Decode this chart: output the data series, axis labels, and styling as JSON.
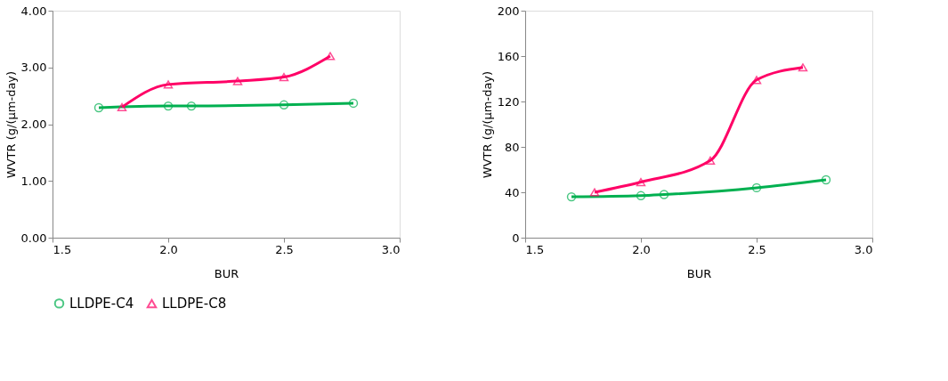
{
  "chart_data": [
    {
      "type": "line",
      "xlabel": "BUR",
      "ylabel": "WVTR (g/(µm-day)",
      "xlim": [
        1.5,
        3.0
      ],
      "xticks": [
        {
          "value": 1.5,
          "label": "1.5"
        },
        {
          "value": 2.0,
          "label": "2.0"
        },
        {
          "value": 2.5,
          "label": "2.5"
        },
        {
          "value": 3.0,
          "label": "3.0"
        }
      ],
      "ylim": [
        0,
        4
      ],
      "yticks": [
        {
          "value": 0,
          "label": "0.00"
        },
        {
          "value": 1,
          "label": "1.00"
        },
        {
          "value": 2,
          "label": "2.00"
        },
        {
          "value": 3,
          "label": "3.00"
        },
        {
          "value": 4,
          "label": "4.00"
        }
      ],
      "grid": false,
      "legend": "bottom",
      "series": [
        {
          "name": "LLDPE-C4",
          "color": "#00b050",
          "marker": "circle",
          "x": [
            1.7,
            2.0,
            2.1,
            2.5,
            2.8
          ],
          "values": [
            2.29,
            2.32,
            2.32,
            2.34,
            2.37
          ]
        },
        {
          "name": "LLDPE-C8",
          "color": "#ff0066",
          "marker": "triangle",
          "x": [
            1.8,
            2.0,
            2.3,
            2.5,
            2.7
          ],
          "values": [
            2.3,
            2.7,
            2.76,
            2.83,
            3.2
          ]
        }
      ]
    },
    {
      "type": "line",
      "xlabel": "BUR",
      "ylabel": "WVTR (g/(µm-day)",
      "xlim": [
        1.5,
        3.0
      ],
      "xticks": [
        {
          "value": 1.5,
          "label": "1.5"
        },
        {
          "value": 2.0,
          "label": "2.0"
        },
        {
          "value": 2.5,
          "label": "2.5"
        },
        {
          "value": 3.0,
          "label": "3.0"
        }
      ],
      "ylim": [
        0,
        200
      ],
      "yticks": [
        0,
        40,
        80,
        120,
        160,
        200
      ],
      "grid": false,
      "legend": "bottom",
      "series": [
        {
          "name": "LLDPE-C4",
          "color": "#00b050",
          "marker": "circle",
          "x": [
            1.7,
            2.0,
            2.1,
            2.5,
            2.8
          ],
          "values": [
            36,
            37,
            38,
            44,
            51
          ]
        },
        {
          "name": "LLDPE-C8",
          "color": "#ff0066",
          "marker": "triangle",
          "x": [
            1.8,
            2.0,
            2.3,
            2.5,
            2.7
          ],
          "values": [
            40,
            49,
            68,
            139,
            150
          ]
        }
      ]
    }
  ]
}
